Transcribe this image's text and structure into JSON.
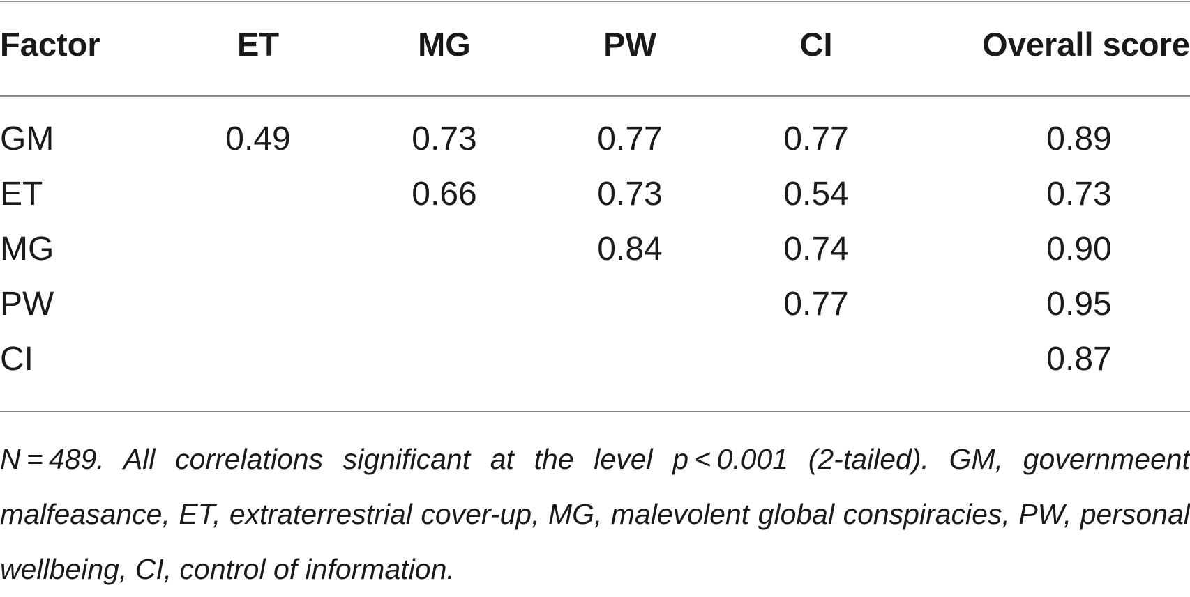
{
  "table": {
    "headers": [
      "Factor",
      "ET",
      "MG",
      "PW",
      "CI",
      "Overall score"
    ],
    "rows": [
      [
        "GM",
        "0.49",
        "0.73",
        "0.77",
        "0.77",
        "0.89"
      ],
      [
        "ET",
        "",
        "0.66",
        "0.73",
        "0.54",
        "0.73"
      ],
      [
        "MG",
        "",
        "",
        "0.84",
        "0.74",
        "0.90"
      ],
      [
        "PW",
        "",
        "",
        "",
        "0.77",
        "0.95"
      ],
      [
        "CI",
        "",
        "",
        "",
        "",
        "0.87"
      ]
    ]
  },
  "footnote": "N = 489. All correlations significant at the level p < 0.001 (2-tailed). GM, govern­meent malfeasance, ET, extraterrestrial cover-up, MG, malevolent global conspira­cies, PW, personal wellbeing, CI, control of information."
}
